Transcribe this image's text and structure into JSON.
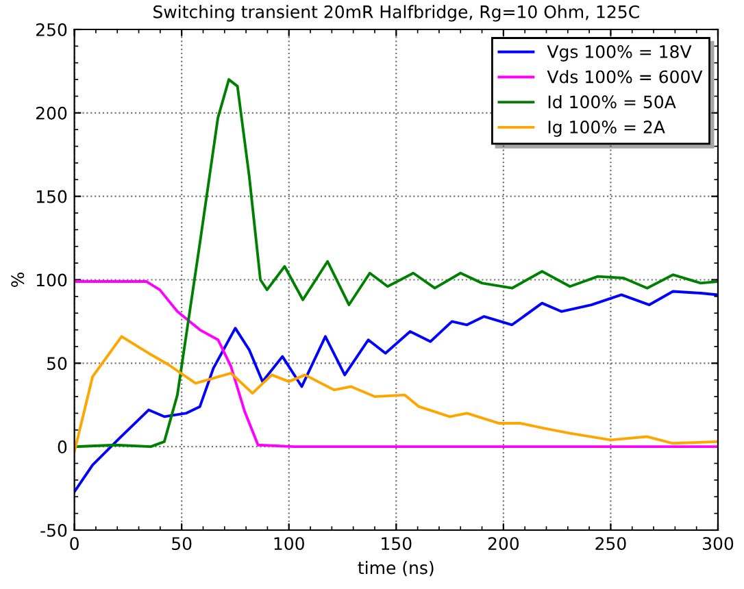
{
  "chart_data": {
    "type": "line",
    "title": "Switching transient 20mR Halfbridge, Rg=10 Ohm, 125C",
    "xlabel": "time (ns)",
    "ylabel": "%",
    "xlim": [
      0,
      300
    ],
    "xticks": [
      0,
      50,
      100,
      150,
      200,
      250,
      300
    ],
    "ylim": [
      -50,
      250
    ],
    "yticks": [
      -50,
      0,
      50,
      100,
      150,
      200,
      250
    ],
    "grid": true,
    "legend": "top right",
    "line_style": "solid",
    "marker": "none",
    "series": [
      {
        "name": "Vgs 100% = 18V",
        "color": "#0000ff",
        "x": [
          0,
          8.5,
          21,
          34.6,
          41.9,
          52,
          58.5,
          64.8,
          75,
          81.5,
          87.7,
          97,
          106,
          117,
          126,
          137,
          145,
          156.5,
          166,
          176,
          183,
          191,
          204,
          218,
          227,
          241,
          255,
          268,
          279,
          292,
          300
        ],
        "values": [
          -27,
          -11,
          5,
          22,
          18,
          20,
          24,
          47,
          71,
          58,
          39,
          54,
          36,
          66,
          43,
          64,
          56,
          69,
          63,
          75,
          73,
          78,
          73,
          86,
          81,
          85,
          91,
          85,
          93,
          92,
          91
        ]
      },
      {
        "name": "Vds 100% = 600V",
        "color": "#ff00ff",
        "x": [
          0,
          33.5,
          39.8,
          48,
          58.5,
          67,
          73,
          79.4,
          85.6,
          102,
          154,
          200,
          250,
          300
        ],
        "values": [
          99,
          99,
          94,
          81,
          70,
          64,
          48,
          21,
          1,
          0,
          0,
          0,
          0,
          0
        ]
      },
      {
        "name": "Id 100% = 50A",
        "color": "#008000",
        "x": [
          0,
          19,
          35.6,
          41.9,
          48,
          58.5,
          66.9,
          72,
          76,
          81.5,
          86.7,
          89.8,
          98,
          106.5,
          118,
          128,
          137.7,
          146,
          158,
          168,
          180,
          190,
          204,
          218,
          231,
          244,
          256,
          267,
          279,
          292,
          300
        ],
        "values": [
          0,
          1,
          0,
          3,
          31,
          122,
          197,
          220,
          216,
          162,
          100,
          94,
          108,
          88,
          111,
          85,
          104,
          96,
          104,
          95,
          104,
          98,
          95,
          105,
          96,
          102,
          101,
          95,
          103,
          98,
          99
        ]
      },
      {
        "name": "Ig 100% = 2A",
        "color": "#ffa500",
        "x": [
          0,
          8.5,
          22,
          34.6,
          44,
          56.5,
          73,
          83,
          92,
          100,
          107.5,
          121,
          129,
          140,
          154,
          160.6,
          175,
          183,
          198,
          208,
          219,
          231,
          250,
          267,
          279,
          300
        ],
        "values": [
          -3,
          42,
          66,
          56,
          49,
          38,
          44,
          32,
          43,
          39,
          43,
          34,
          36,
          30,
          31,
          24,
          18,
          20,
          14,
          14,
          11,
          8,
          4,
          6,
          2,
          3
        ]
      }
    ]
  }
}
